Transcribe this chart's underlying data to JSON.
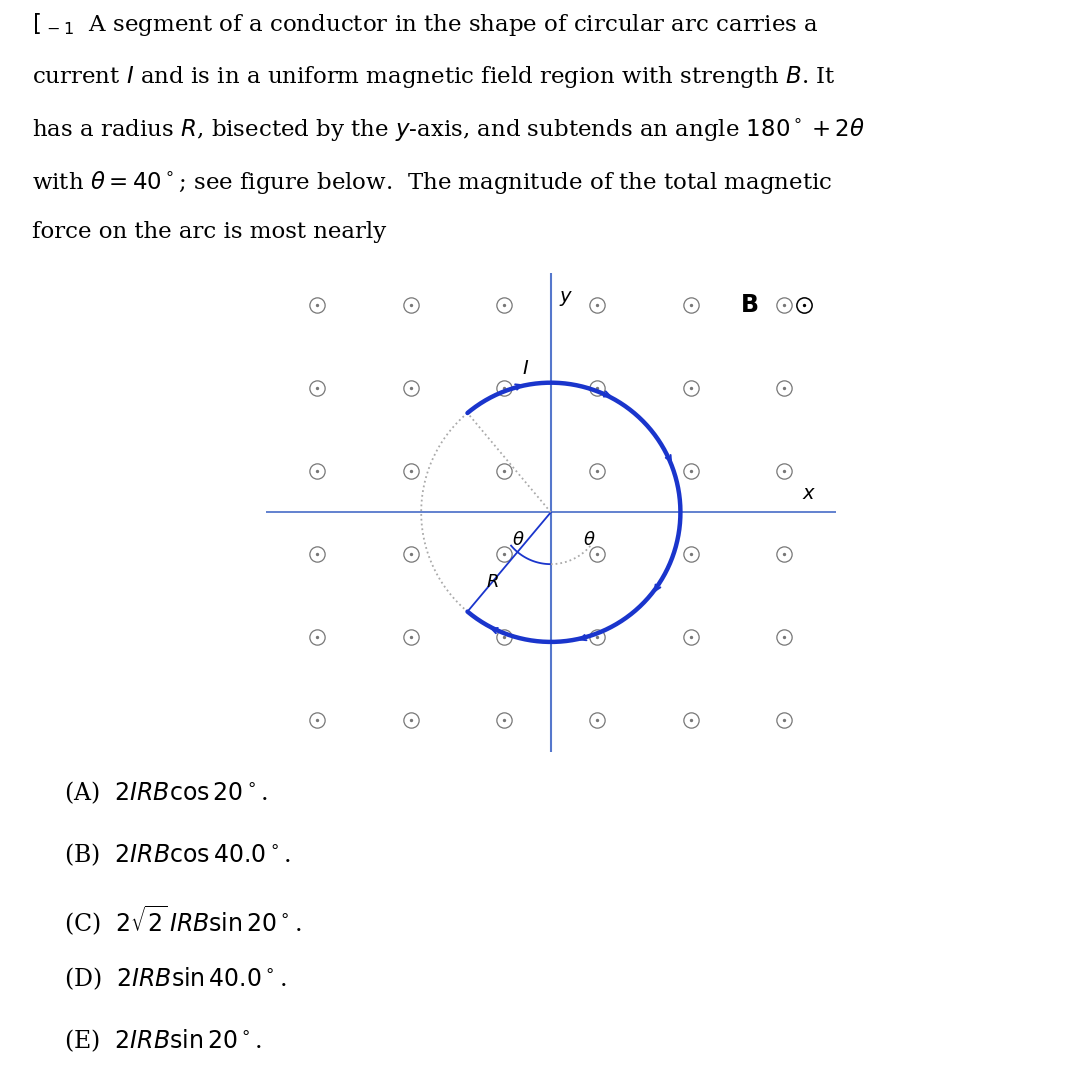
{
  "dot_color": "#777777",
  "arc_color": "#1a35cc",
  "axis_color": "#5577cc",
  "dotted_arc_color": "#aaaaaa",
  "theta_deg": 40,
  "background": "#ffffff",
  "arc_lw": 3.2,
  "dot_outer_ms": 11,
  "dot_inner_ms": 2.8,
  "grid_rows": 6,
  "grid_cols": 6
}
